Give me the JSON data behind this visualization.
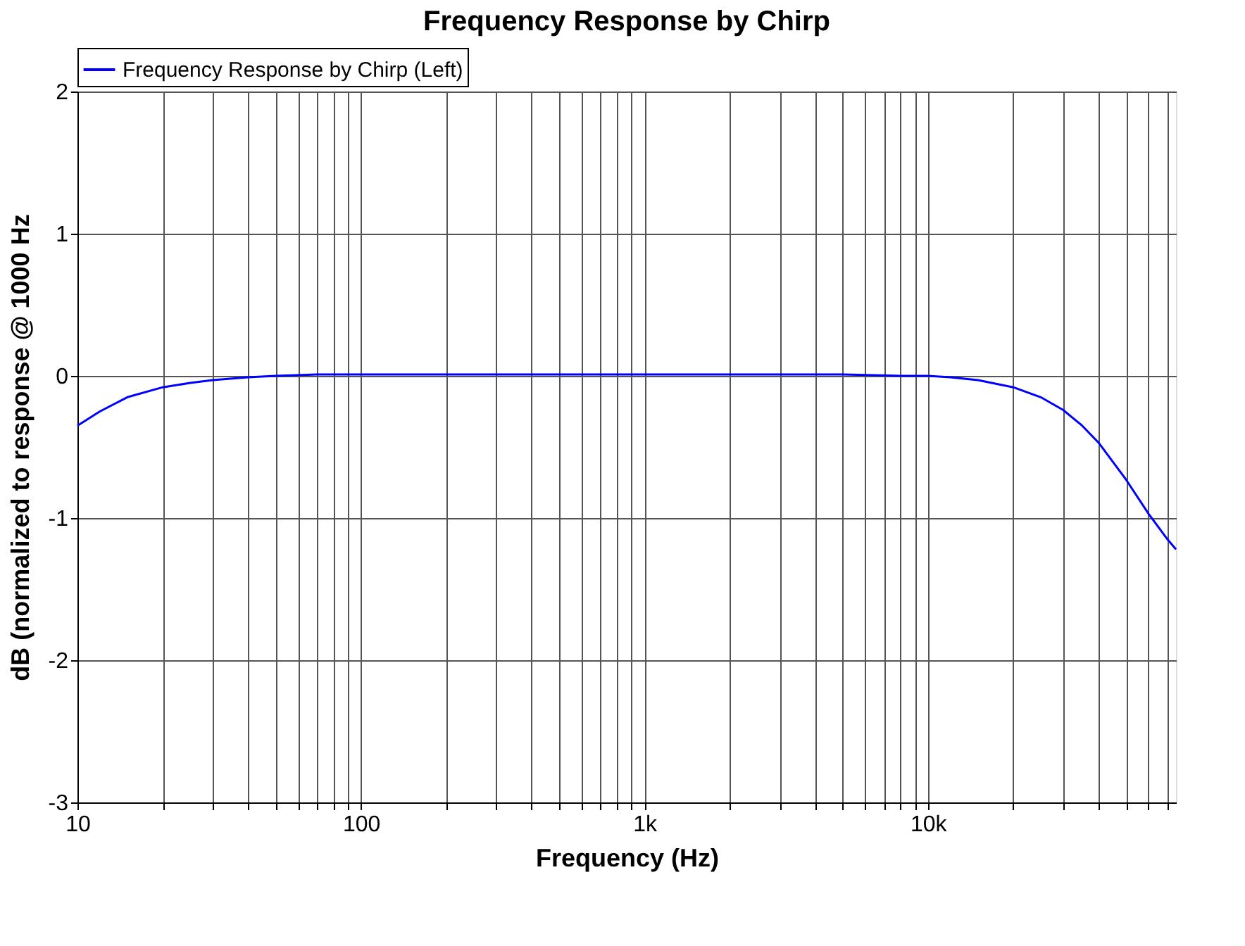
{
  "chart_data": {
    "type": "line",
    "title": "Frequency Response by Chirp",
    "xlabel": "Frequency (Hz)",
    "ylabel": "dB (normalized to response @ 1000 Hz",
    "log": "x",
    "grid": true,
    "legend": "top left",
    "marker": "none",
    "line_style": "solid",
    "xlim": [
      10,
      75000
    ],
    "ylim": [
      -3,
      2
    ],
    "xticks": [
      10,
      {
        "value": 20,
        "label": null
      },
      {
        "value": 30,
        "label": null
      },
      {
        "value": 40,
        "label": null
      },
      {
        "value": 50,
        "label": null
      },
      {
        "value": 60,
        "label": null
      },
      {
        "value": 70,
        "label": null
      },
      {
        "value": 80,
        "label": null
      },
      {
        "value": 90,
        "label": null
      },
      100,
      {
        "value": 200,
        "label": null
      },
      {
        "value": 300,
        "label": null
      },
      {
        "value": 400,
        "label": null
      },
      {
        "value": 500,
        "label": null
      },
      {
        "value": 600,
        "label": null
      },
      {
        "value": 700,
        "label": null
      },
      {
        "value": 800,
        "label": null
      },
      {
        "value": 900,
        "label": null
      },
      {
        "value": 1000,
        "label": "1k"
      },
      {
        "value": 2000,
        "label": null
      },
      {
        "value": 3000,
        "label": null
      },
      {
        "value": 4000,
        "label": null
      },
      {
        "value": 5000,
        "label": null
      },
      {
        "value": 6000,
        "label": null
      },
      {
        "value": 7000,
        "label": null
      },
      {
        "value": 8000,
        "label": null
      },
      {
        "value": 9000,
        "label": null
      },
      {
        "value": 10000,
        "label": "10k"
      },
      {
        "value": 20000,
        "label": null
      },
      {
        "value": 30000,
        "label": null
      },
      {
        "value": 40000,
        "label": null
      },
      {
        "value": 50000,
        "label": null
      },
      {
        "value": 60000,
        "label": null
      },
      {
        "value": 70000,
        "label": null
      }
    ],
    "yticks": [
      -3,
      -2,
      -1,
      0,
      1,
      2
    ],
    "x": [
      10,
      12,
      15,
      20,
      25,
      30,
      40,
      50,
      70,
      100,
      300,
      1000,
      3000,
      5000,
      8000,
      10000,
      12000,
      15000,
      20000,
      25000,
      30000,
      35000,
      40000,
      50000,
      60000,
      70000,
      75000
    ],
    "series": [
      {
        "name": "Frequency Response by Chirp (Left)",
        "color": "#0000ff",
        "values": [
          -0.35,
          -0.25,
          -0.15,
          -0.08,
          -0.05,
          -0.03,
          -0.01,
          0,
          0.01,
          0.01,
          0.01,
          0.01,
          0.01,
          0.01,
          0,
          0,
          -0.01,
          -0.03,
          -0.08,
          -0.15,
          -0.24,
          -0.35,
          -0.47,
          -0.73,
          -0.97,
          -1.15,
          -1.22
        ]
      }
    ]
  }
}
